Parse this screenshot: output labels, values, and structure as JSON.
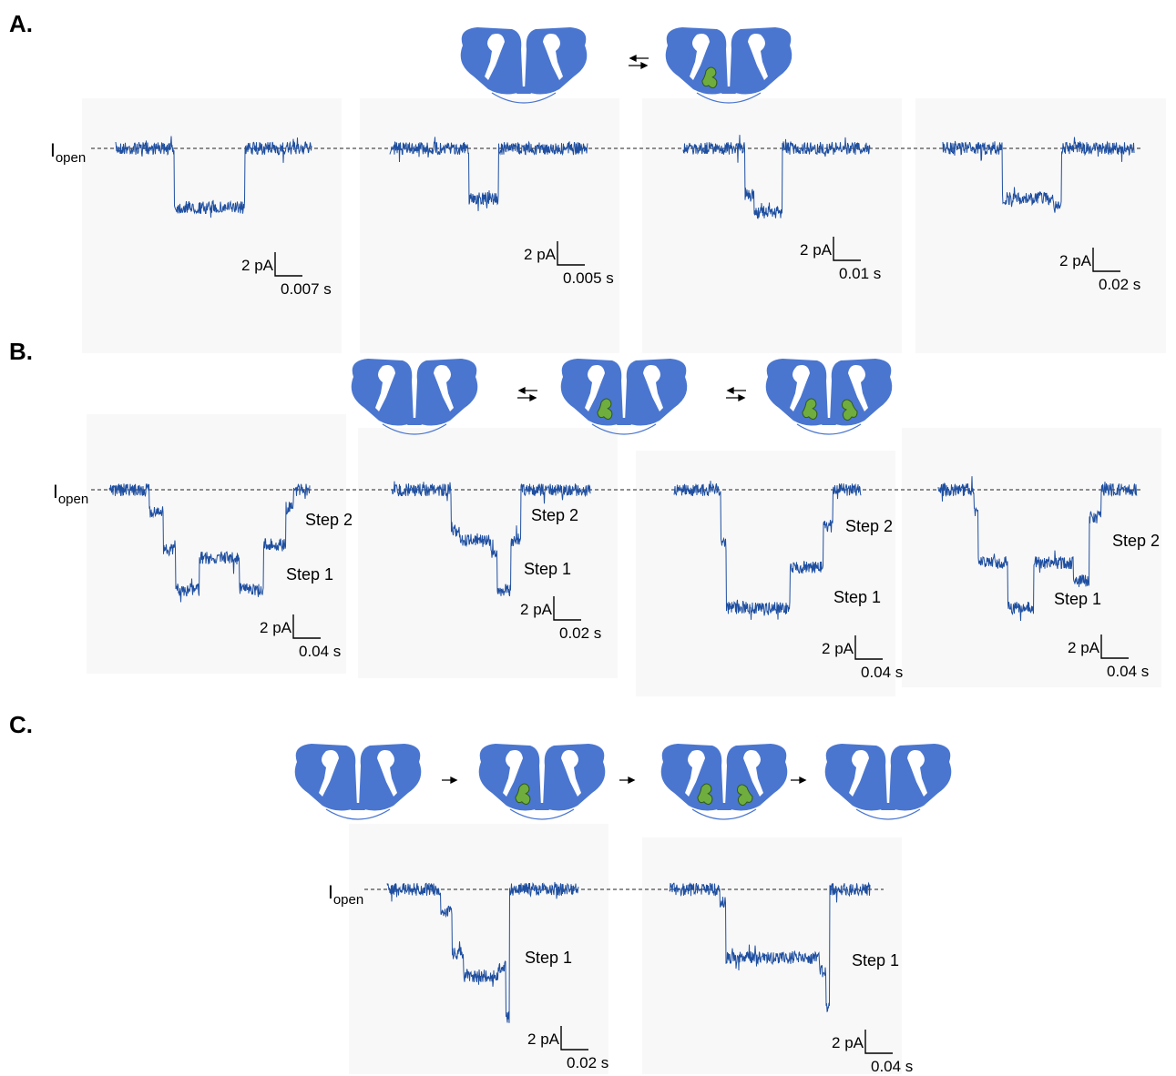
{
  "panels": [
    {
      "label": "A.",
      "open_label": {
        "main": "I",
        "sub": "open"
      },
      "traces": [
        {
          "scale_current": "2 pA",
          "scale_time": "0.007 s"
        },
        {
          "scale_current": "2 pA",
          "scale_time": "0.005 s"
        },
        {
          "scale_current": "2 pA",
          "scale_time": "0.01 s"
        },
        {
          "scale_current": "2 pA",
          "scale_time": "0.02 s"
        }
      ]
    },
    {
      "label": "B.",
      "open_label": {
        "main": "I",
        "sub": "open"
      },
      "traces": [
        {
          "scale_current": "2 pA",
          "scale_time": "0.04 s",
          "steps": [
            "Step 1",
            "Step 2"
          ]
        },
        {
          "scale_current": "2 pA",
          "scale_time": "0.02 s",
          "steps": [
            "Step 1",
            "Step 2"
          ]
        },
        {
          "scale_current": "2 pA",
          "scale_time": "0.04 s",
          "steps": [
            "Step 1",
            "Step 2"
          ]
        },
        {
          "scale_current": "2 pA",
          "scale_time": "0.04 s",
          "steps": [
            "Step 1",
            "Step 2"
          ]
        }
      ]
    },
    {
      "label": "C.",
      "open_label": {
        "main": "I",
        "sub": "open"
      },
      "traces": [
        {
          "scale_current": "2 pA",
          "scale_time": "0.02 s",
          "steps": [
            "Step 1"
          ]
        },
        {
          "scale_current": "2 pA",
          "scale_time": "0.04 s",
          "steps": [
            "Step 1"
          ]
        }
      ]
    }
  ]
}
